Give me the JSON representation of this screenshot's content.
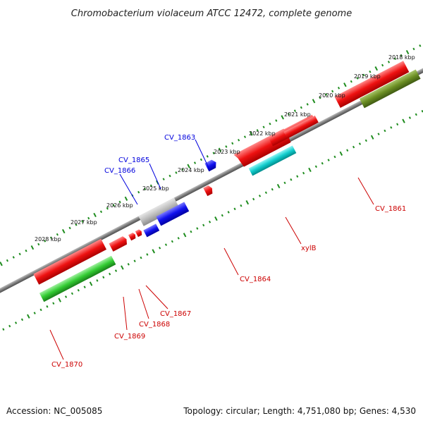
{
  "title": "Chromobacterium violaceum ATCC 12472, complete genome",
  "footer": {
    "accession": "Accession: NC_005085",
    "summary": "Topology: circular; Length: 4,751,080 bp; Genes: 4,530"
  },
  "kbp_labels": [
    "2018 kbp",
    "2019 kbp",
    "2020 kbp",
    "2021 kbp",
    "2022 kbp",
    "2023 kbp",
    "2024 kbp",
    "2025 kbp",
    "2026 kbp",
    "2027 kbp",
    "2028 kbp"
  ],
  "gene_labels": [
    {
      "id": "cv1863",
      "text": "CV_1863",
      "color": "#0000dd"
    },
    {
      "id": "cv1865",
      "text": "CV_1865",
      "color": "#0000dd"
    },
    {
      "id": "cv1866",
      "text": "CV_1866",
      "color": "#0000dd"
    },
    {
      "id": "cv1861",
      "text": "CV_1861",
      "color": "#cc0000"
    },
    {
      "id": "xylb",
      "text": "xylB",
      "color": "#cc0000"
    },
    {
      "id": "cv1864",
      "text": "CV_1864",
      "color": "#cc0000"
    },
    {
      "id": "cv1867",
      "text": "CV_1867",
      "color": "#cc0000"
    },
    {
      "id": "cv1868",
      "text": "CV_1868",
      "color": "#cc0000"
    },
    {
      "id": "cv1869",
      "text": "CV_1869",
      "color": "#cc0000"
    },
    {
      "id": "cv1870",
      "text": "CV_1870",
      "color": "#cc0000"
    }
  ],
  "colors": {
    "backbone": "#7f7f7f",
    "tick_green": "#1e8c1e",
    "gene_red": "#ee1111",
    "gene_blue": "#1111ee",
    "gene_gray": "#bcbcbc",
    "gene_cyan": "#11cccc",
    "gene_green": "#33cc33",
    "gene_olive": "#6b8e23"
  }
}
